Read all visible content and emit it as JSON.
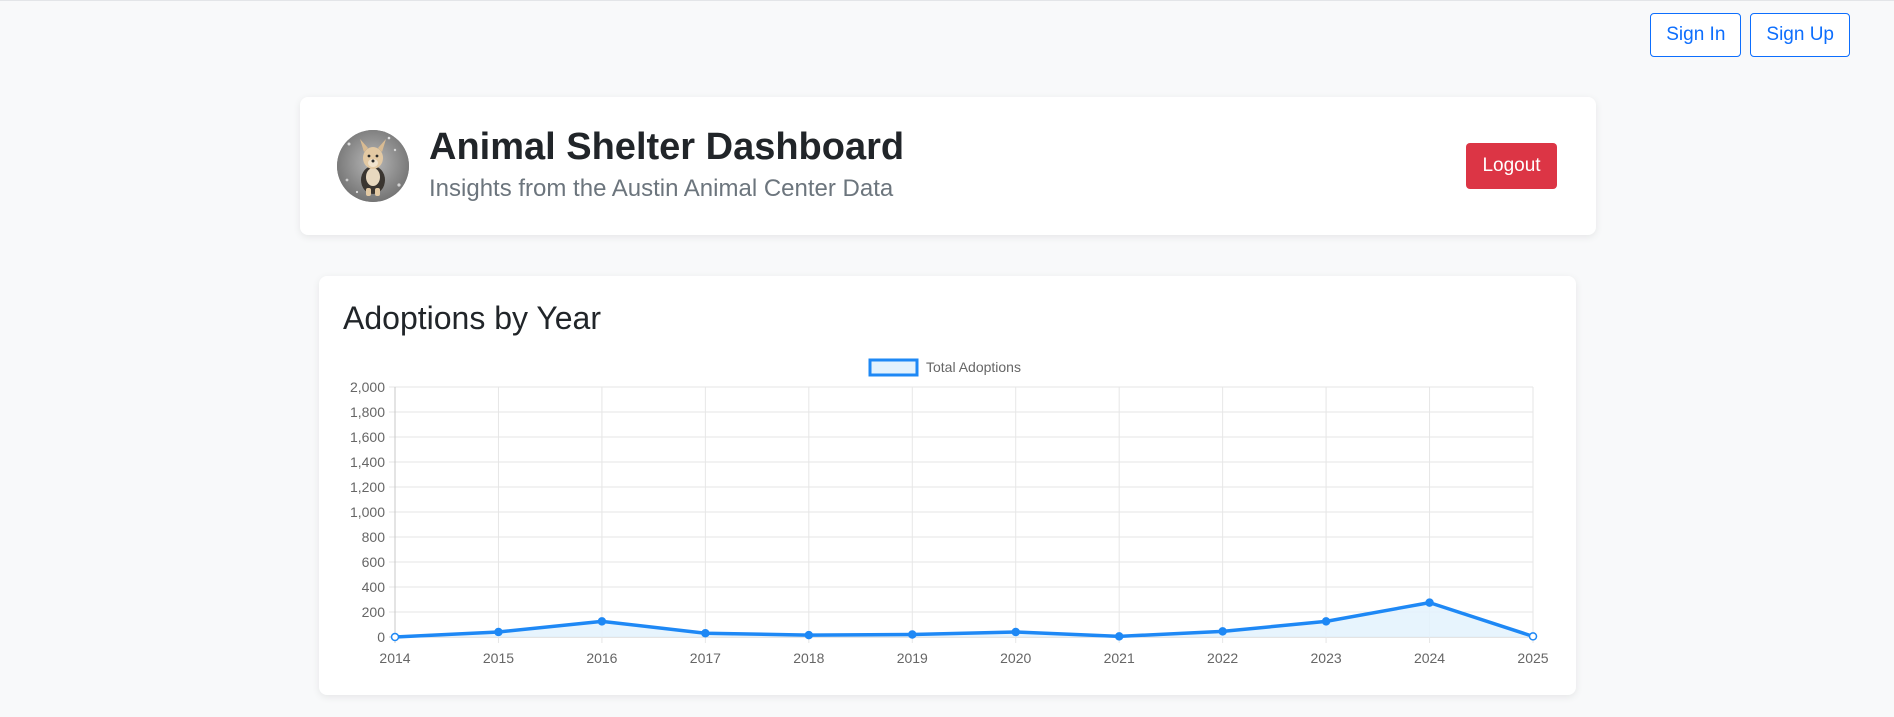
{
  "auth": {
    "sign_in_label": "Sign In",
    "sign_up_label": "Sign Up"
  },
  "header": {
    "title": "Animal Shelter Dashboard",
    "subtitle": "Insights from the Austin Animal Center Data",
    "logout_label": "Logout"
  },
  "colors": {
    "primary": "#0d6efd",
    "danger": "#dc3545",
    "series_line": "#1e88f5",
    "series_fill": "#e3f2fd"
  },
  "chart_data": {
    "type": "line",
    "title": "Adoptions by Year",
    "x": [
      "2014",
      "2015",
      "2016",
      "2017",
      "2018",
      "2019",
      "2020",
      "2021",
      "2022",
      "2023",
      "2024",
      "2025"
    ],
    "series": [
      {
        "name": "Total Adoptions",
        "values": [
          0,
          40,
          125,
          30,
          15,
          20,
          40,
          5,
          45,
          125,
          275,
          5
        ]
      }
    ],
    "y_ticks": [
      "2,000",
      "1,800",
      "1,600",
      "1,400",
      "1,200",
      "1,000",
      "800",
      "600",
      "400",
      "200",
      "0"
    ],
    "ylim": [
      0,
      2000
    ],
    "grid": true,
    "fill": true,
    "legend": "top"
  }
}
